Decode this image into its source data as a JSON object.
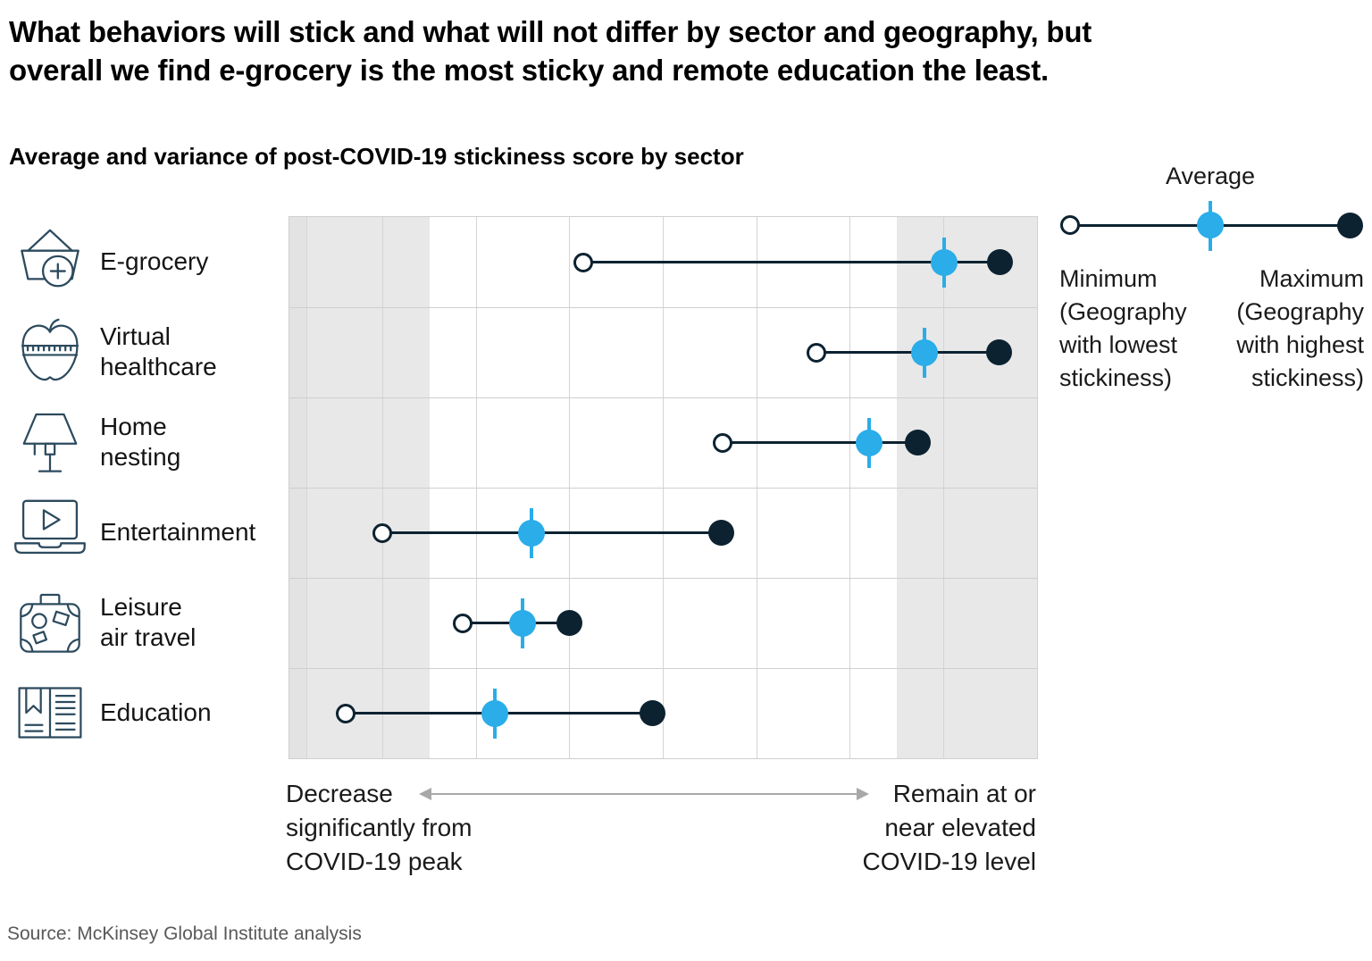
{
  "title_lines": [
    "What behaviors will stick and what will not differ by sector and geography, but",
    "overall we find e-grocery is the most sticky and remote education the least."
  ],
  "subtitle": "Average and variance of post-COVID-19 stickiness score by sector",
  "legend": {
    "average_label": "Average",
    "min_label_lines": [
      "Minimum",
      "(Geography",
      "with lowest",
      "stickiness)"
    ],
    "max_label_lines": [
      "Maximum",
      "(Geography",
      "with highest",
      "stickiness)"
    ]
  },
  "axis": {
    "left_label_lines": [
      "Decrease",
      "significantly from",
      "COVID-19 peak"
    ],
    "right_label_lines": [
      "Remain at or",
      "near elevated",
      "COVID-19 level"
    ]
  },
  "source": "Source: McKinsey Global Institute analysis",
  "colors": {
    "average_blue": "#2aade8",
    "dark_navy": "#0c2231",
    "shaded_band": "#e8e8e8",
    "gridline": "#d4d4d4",
    "arrow_gray": "#a8a8a8"
  },
  "chart_data": {
    "type": "dot-range",
    "title": "Average and variance of post-COVID-19 stickiness score by sector",
    "x_axis": {
      "min_meaning": "Decrease significantly from COVID-19 peak",
      "max_meaning": "Remain at or near elevated COVID-19 level",
      "unit": "percent of axis span (0-100, estimated from marker positions; no numeric ticks shown)",
      "range": [
        0,
        100
      ],
      "gridlines": 8,
      "shaded_band_fraction": 0.1875
    },
    "marker_legend": {
      "open_circle": "Minimum (Geography with lowest stickiness)",
      "blue_dot": "Average",
      "filled_dot": "Maximum (Geography with highest stickiness)"
    },
    "series": [
      {
        "sector": "E-grocery",
        "icon": "grocery-basket-icon",
        "label_lines": [
          "E-grocery"
        ],
        "min": 39.3,
        "avg": 87.6,
        "max": 95.0
      },
      {
        "sector": "Virtual healthcare",
        "icon": "apple-measuring-tape-icon",
        "label_lines": [
          "Virtual",
          "healthcare"
        ],
        "min": 70.5,
        "avg": 84.9,
        "max": 94.9
      },
      {
        "sector": "Home nesting",
        "icon": "lamp-icon",
        "label_lines": [
          "Home",
          "nesting"
        ],
        "min": 58.0,
        "avg": 77.5,
        "max": 84.1
      },
      {
        "sector": "Entertainment",
        "icon": "laptop-play-icon",
        "label_lines": [
          "Entertainment"
        ],
        "min": 12.4,
        "avg": 32.4,
        "max": 57.8
      },
      {
        "sector": "Leisure air travel",
        "icon": "suitcase-icon",
        "label_lines": [
          "Leisure",
          "air travel"
        ],
        "min": 23.2,
        "avg": 31.2,
        "max": 37.5
      },
      {
        "sector": "Education",
        "icon": "open-book-icon",
        "label_lines": [
          "Education"
        ],
        "min": 7.5,
        "avg": 27.5,
        "max": 48.6
      }
    ]
  }
}
